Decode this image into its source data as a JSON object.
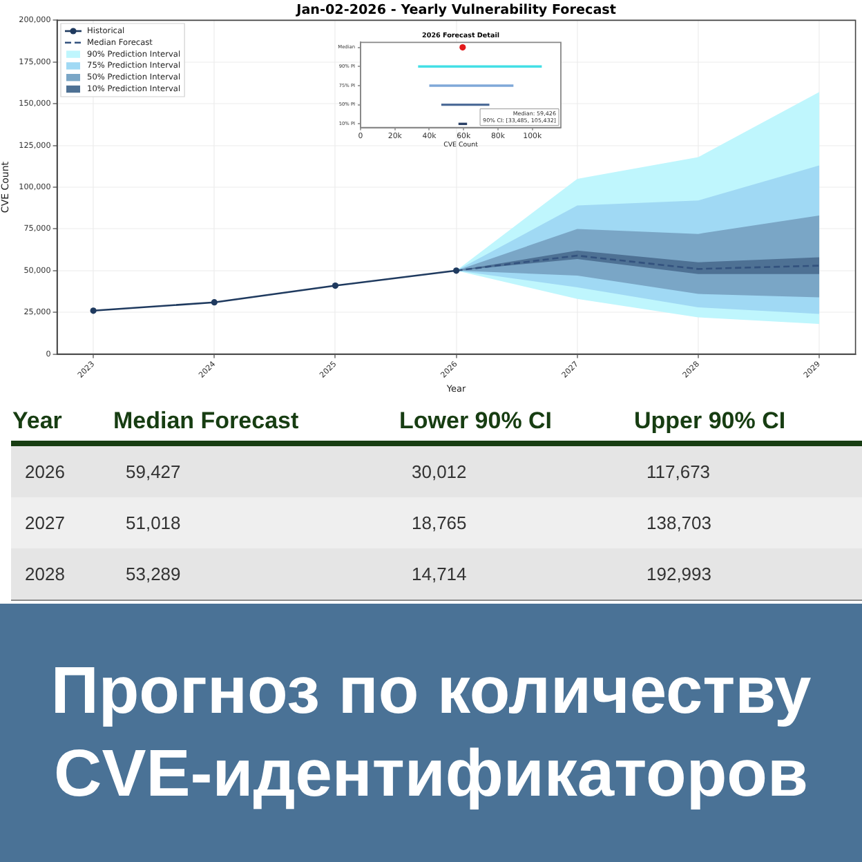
{
  "chart_data": [
    {
      "type": "line",
      "title": "Jan-02-2026 - Yearly Vulnerability Forecast",
      "xlabel": "Year",
      "ylabel": "CVE Count",
      "xlim": [
        2022.7,
        2029.3
      ],
      "xticks": [
        2023,
        2024,
        2025,
        2026,
        2027,
        2028,
        2029
      ],
      "ylim": [
        0,
        200000
      ],
      "yticks": [
        0,
        {
          "value": 25000,
          "label": "25,000"
        },
        {
          "value": 50000,
          "label": "50,000"
        },
        {
          "value": 75000,
          "label": "75,000"
        },
        {
          "value": 100000,
          "label": "100,000"
        },
        {
          "value": 125000,
          "label": "125,000"
        },
        {
          "value": 150000,
          "label": "150,000"
        },
        {
          "value": 175000,
          "label": "175,000"
        },
        {
          "value": 200000,
          "label": "200,000"
        }
      ],
      "grid": true,
      "legend": "top left",
      "series": [
        {
          "name": "Historical",
          "color": "#1f3a5f",
          "x": [
            2023,
            2024,
            2025,
            2026
          ],
          "values": [
            26000,
            31000,
            41000,
            50000
          ],
          "marker": "circle",
          "line_style": "solid"
        },
        {
          "name": "Median Forecast",
          "color": "#33527e",
          "x": [
            2026,
            2027,
            2028,
            2029
          ],
          "values": [
            50000,
            59000,
            51000,
            53000
          ],
          "marker": "none",
          "line_style": "dashed"
        },
        {
          "name": "90% Prediction Interval",
          "color": "#bff6fd",
          "x": [
            2026,
            2027,
            2028,
            2029
          ],
          "values": [
            null,
            null,
            null,
            null
          ],
          "lower": [
            50000,
            33000,
            22000,
            18000
          ],
          "upper": [
            50000,
            105000,
            118000,
            157000
          ]
        },
        {
          "name": "75% Prediction Interval",
          "color": "#a0d9f4",
          "x": [
            2026,
            2027,
            2028,
            2029
          ],
          "values": [
            null,
            null,
            null,
            null
          ],
          "lower": [
            50000,
            40000,
            28000,
            24000
          ],
          "upper": [
            50000,
            89000,
            92000,
            113000
          ]
        },
        {
          "name": "50% Prediction Interval",
          "color": "#7aa6c6",
          "x": [
            2026,
            2027,
            2028,
            2029
          ],
          "values": [
            null,
            null,
            null,
            null
          ],
          "lower": [
            50000,
            47000,
            36000,
            34000
          ],
          "upper": [
            50000,
            75000,
            72000,
            83000
          ]
        },
        {
          "name": "10% Prediction Interval",
          "color": "#4e7194",
          "x": [
            2026,
            2027,
            2028,
            2029
          ],
          "values": [
            null,
            null,
            null,
            null
          ],
          "lower": [
            50000,
            57000,
            48000,
            48000
          ],
          "upper": [
            50000,
            62000,
            55000,
            58000
          ]
        }
      ]
    },
    {
      "type": "bar",
      "title": "2026 Forecast Detail",
      "xlabel": "CVE Count",
      "orientation": "horizontal",
      "categories": [
        "Median",
        "90% PI",
        "75% PI",
        "50% PI",
        "10% PI"
      ],
      "xlim": [
        0,
        116600
      ],
      "xticks": [
        0,
        {
          "value": 20000,
          "label": "20k"
        },
        {
          "value": 40000,
          "label": "40k"
        },
        {
          "value": 60000,
          "label": "60k"
        },
        {
          "value": 80000,
          "label": "80k"
        },
        {
          "value": 100000,
          "label": "100k"
        }
      ],
      "series": [
        {
          "type": "scatter",
          "color": "#e31a1c",
          "values": [
            59426,
            null,
            null,
            null,
            null
          ],
          "marker": "circle"
        },
        {
          "type": "bar",
          "colors": [
            null,
            "#44dfe6",
            "#7fa8d8",
            "#4d6c98",
            "#2a4066"
          ],
          "base": [
            null,
            33500,
            40000,
            47000,
            57000
          ],
          "values": [
            null,
            72000,
            49000,
            28000,
            5000
          ]
        }
      ],
      "annotations": [
        "Median: 59,426",
        "90% CI: [33,485, 105,432]"
      ]
    },
    {
      "type": "other",
      "xlabel": "Year",
      "categories": [
        "2026",
        "2027",
        "2028"
      ],
      "series": [
        {
          "name": "Median Forecast",
          "colors": [
            "#e5e5e5",
            "#efefef",
            "#e5e5e5"
          ],
          "values": [
            59427,
            51018,
            53289
          ],
          "value_labels": [
            "59,427",
            "51,018",
            "53,289"
          ]
        },
        {
          "name": "Lower 90% CI",
          "colors": [
            "#e5e5e5",
            "#efefef",
            "#e5e5e5"
          ],
          "values": [
            30012,
            18765,
            14714
          ],
          "value_labels": [
            "30,012",
            "18,765",
            "14,714"
          ]
        },
        {
          "name": "Upper 90% CI",
          "colors": [
            "#e5e5e5",
            "#efefef",
            "#e5e5e5"
          ],
          "values": [
            117673,
            138703,
            192993
          ],
          "value_labels": [
            "117,673",
            "138,703",
            "192,993"
          ]
        }
      ]
    },
    {
      "type": "other",
      "title": "Прогноз по количеству CVE-идентификаторов"
    }
  ]
}
